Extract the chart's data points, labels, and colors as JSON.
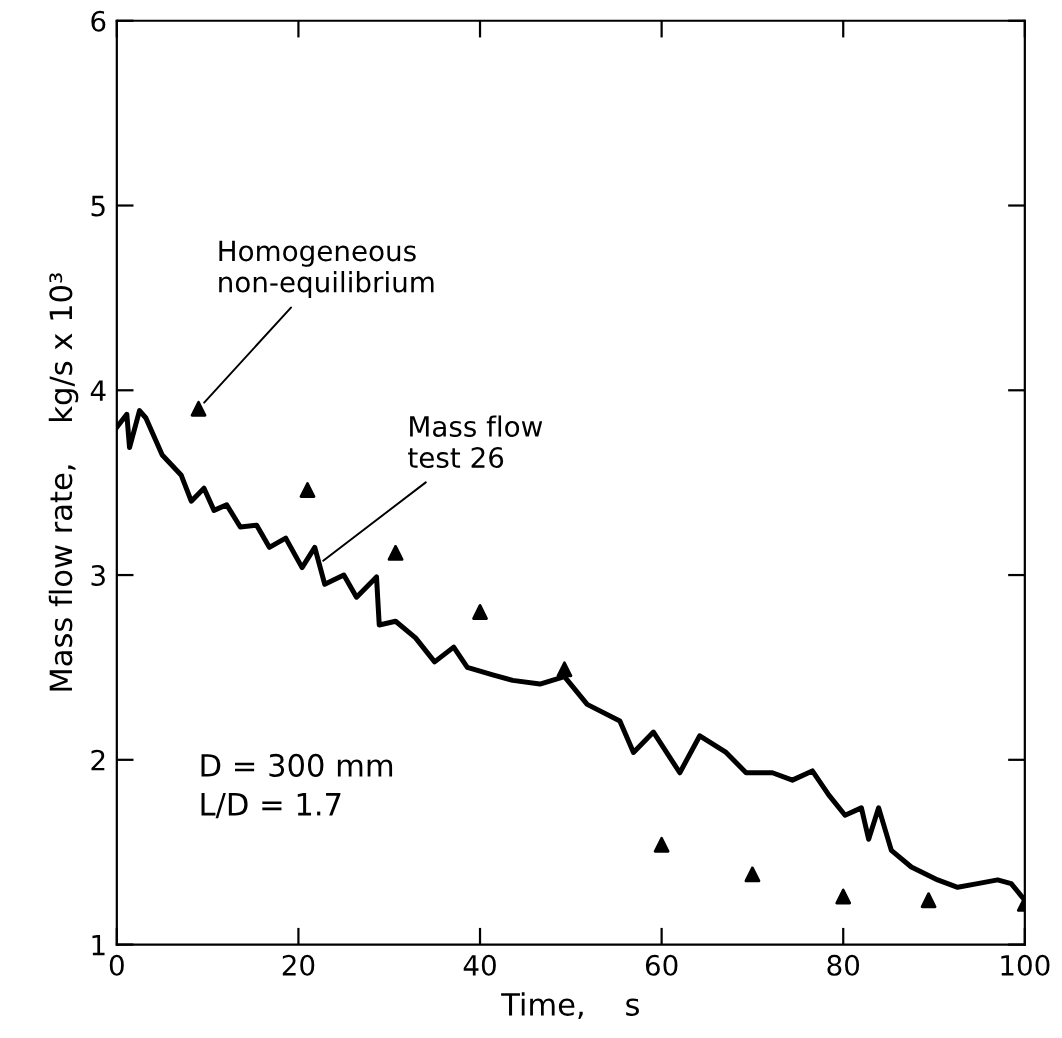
{
  "chart_data": {
    "type": "line",
    "xlabel": "Time,    s",
    "ylabel": "Mass flow rate,    kg/s x 10³",
    "xlim": [
      0,
      100
    ],
    "xticks": [
      0,
      20,
      40,
      60,
      80,
      100
    ],
    "ylim": [
      1,
      6
    ],
    "yticks": [
      1,
      2,
      3,
      4,
      5,
      6
    ],
    "grid": false,
    "series": [
      {
        "color": "#000000",
        "marker": "none",
        "line_style": "solid",
        "x": [
          0,
          1.1,
          1.4,
          2.5,
          3.2,
          5,
          7.1,
          8.2,
          9.6,
          10.7,
          12.1,
          13.6,
          15.4,
          16.8,
          18.6,
          20.4,
          21.8,
          22.9,
          25,
          26.4,
          28.6,
          28.9,
          30.7,
          32.9,
          35,
          37.1,
          38.6,
          41.4,
          43.6,
          46.6,
          49.3,
          51.8,
          55.4,
          56.9,
          59.1,
          62,
          64.2,
          67.1,
          69.3,
          72.2,
          74.4,
          76.6,
          78.4,
          80.2,
          82,
          82.8,
          83.9,
          85.3,
          87.5,
          90.4,
          92.6,
          94.8,
          97,
          98.5,
          100
        ],
        "values": [
          3.8,
          3.87,
          3.69,
          3.89,
          3.85,
          3.65,
          3.54,
          3.4,
          3.47,
          3.35,
          3.38,
          3.26,
          3.27,
          3.15,
          3.2,
          3.04,
          3.15,
          2.95,
          3.0,
          2.88,
          2.99,
          2.73,
          2.75,
          2.66,
          2.53,
          2.61,
          2.5,
          2.46,
          2.43,
          2.41,
          2.45,
          2.3,
          2.21,
          2.04,
          2.15,
          1.93,
          2.13,
          2.04,
          1.93,
          1.93,
          1.89,
          1.94,
          1.81,
          1.7,
          1.74,
          1.57,
          1.74,
          1.51,
          1.42,
          1.35,
          1.31,
          1.33,
          1.35,
          1.33,
          1.24
        ]
      },
      {
        "type": "scatter",
        "color": "#000000",
        "marker": "triangle",
        "x": [
          9,
          21,
          30.7,
          40,
          49.3,
          60,
          70,
          80,
          89.4,
          100
        ],
        "values": [
          3.9,
          3.46,
          3.12,
          2.8,
          2.49,
          1.54,
          1.38,
          1.26,
          1.24,
          1.22
        ]
      }
    ],
    "annotations": [
      {
        "text": "Homogeneous\nnon-equilibrium",
        "x": 9,
        "y": 3.9
      },
      {
        "text": "Mass flow\ntest 26",
        "x": 22,
        "y": 3.05
      },
      "D = 300 mm\nL/D = 1.7"
    ]
  }
}
